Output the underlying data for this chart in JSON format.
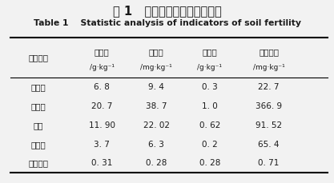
{
  "title_cn": "表 1   土壤各肥力指标统计分析",
  "title_en": "Table 1    Statistic analysis of indicators of soil fertility",
  "col_header_cn": [
    "有机质",
    "有效磷",
    "速效钾",
    "水解性氮"
  ],
  "col_header_unit": [
    "/g·kg⁻¹",
    "/mg·kg⁻¹",
    "/g·kg⁻¹",
    "/mg·kg⁻¹"
  ],
  "row_labels": [
    "统计指标",
    "最小值",
    "最大值",
    "均值",
    "标准差",
    "变异系数"
  ],
  "data": [
    [
      "6. 8",
      "9. 4",
      "0. 3",
      "22. 7"
    ],
    [
      "20. 7",
      "38. 7",
      "1. 0",
      "366. 9"
    ],
    [
      "11. 90",
      "22. 02",
      "0. 62",
      "91. 52"
    ],
    [
      "3. 7",
      "6. 3",
      "0. 2",
      "65. 4"
    ],
    [
      "0. 31",
      "0. 28",
      "0. 28",
      "0. 71"
    ]
  ],
  "bg_color": "#f2f2f2",
  "text_color": "#1a1a1a"
}
